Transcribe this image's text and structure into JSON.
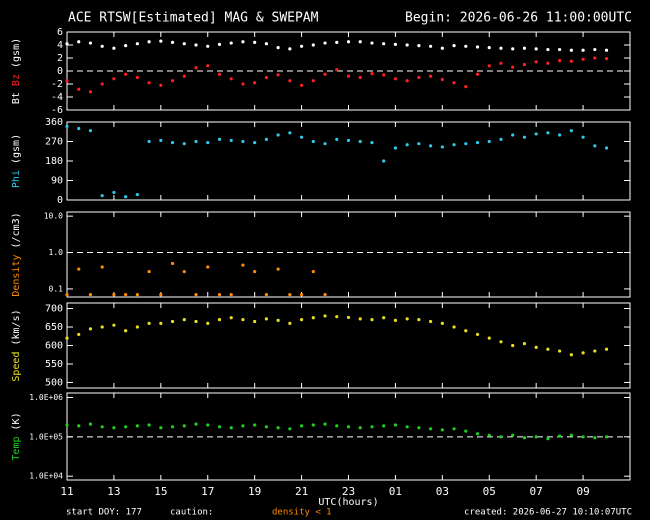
{
  "header": {
    "title": "ACE RTSW[Estimated] MAG & SWEPAM",
    "begin": "Begin: 2026-06-26 11:00:00UTC"
  },
  "chart_data": [
    {
      "type": "scatter",
      "ylabel": "(gsm)",
      "xlim": [
        0,
        24
      ],
      "ylim": [
        -6,
        6
      ],
      "yticks": [
        -6,
        -4,
        -2,
        0,
        2,
        4,
        6
      ],
      "log": false,
      "hline": 0,
      "x": [
        0,
        0.5,
        1,
        1.5,
        2,
        2.5,
        3,
        3.5,
        4,
        4.5,
        5,
        5.5,
        6,
        6.5,
        7,
        7.5,
        8,
        8.5,
        9,
        9.5,
        10,
        10.5,
        11,
        11.5,
        12,
        12.5,
        13,
        13.5,
        14,
        14.5,
        15,
        15.5,
        16,
        16.5,
        17,
        17.5,
        18,
        18.5,
        19,
        19.5,
        20,
        20.5,
        21,
        21.5,
        22,
        22.5,
        23
      ],
      "series": [
        {
          "name": "Bt",
          "color": "#ffffff",
          "values": [
            4.2,
            4.5,
            4.3,
            3.8,
            3.5,
            3.9,
            4.2,
            4.5,
            4.6,
            4.4,
            4.2,
            4.0,
            3.8,
            4.1,
            4.3,
            4.5,
            4.4,
            4.2,
            3.6,
            3.4,
            3.8,
            4.0,
            4.3,
            4.4,
            4.5,
            4.5,
            4.3,
            4.2,
            4.1,
            4.0,
            3.9,
            3.8,
            3.5,
            3.9,
            3.8,
            3.7,
            3.6,
            3.5,
            3.4,
            3.5,
            3.4,
            3.3,
            3.3,
            3.2,
            3.2,
            3.3,
            3.2
          ]
        },
        {
          "name": "Bz",
          "color": "#ff2020",
          "values": [
            -1.5,
            -2.8,
            -3.2,
            -2.0,
            -1.2,
            -0.5,
            -1.0,
            -1.8,
            -2.2,
            -1.5,
            -0.8,
            0.5,
            0.8,
            -0.5,
            -1.2,
            -2.0,
            -1.8,
            -1.0,
            -0.6,
            -1.5,
            -2.2,
            -1.5,
            -0.5,
            0.2,
            -0.8,
            -1.0,
            -0.4,
            -0.6,
            -1.2,
            -1.5,
            -1.0,
            -0.8,
            -1.3,
            -1.8,
            -2.4,
            -0.5,
            0.8,
            1.2,
            0.6,
            1.0,
            1.4,
            1.2,
            1.6,
            1.5,
            1.8,
            2.0,
            1.9
          ]
        }
      ]
    },
    {
      "type": "scatter",
      "ylabel": "(gsm)",
      "xlim": [
        0,
        24
      ],
      "ylim": [
        0,
        360
      ],
      "yticks": [
        0,
        90,
        180,
        270,
        360
      ],
      "log": false,
      "x": [
        0,
        0.5,
        1,
        1.5,
        2,
        2.5,
        3,
        3.5,
        4,
        4.5,
        5,
        5.5,
        6,
        6.5,
        7,
        7.5,
        8,
        8.5,
        9,
        9.5,
        10,
        10.5,
        11,
        11.5,
        12,
        12.5,
        13,
        13.5,
        14,
        14.5,
        15,
        15.5,
        16,
        16.5,
        17,
        17.5,
        18,
        18.5,
        19,
        19.5,
        20,
        20.5,
        21,
        21.5,
        22,
        22.5,
        23
      ],
      "series": [
        {
          "name": "Phi",
          "color": "#30c8e8",
          "values": [
            340,
            330,
            320,
            20,
            35,
            15,
            25,
            270,
            275,
            265,
            260,
            270,
            265,
            280,
            275,
            270,
            265,
            280,
            300,
            310,
            290,
            270,
            260,
            280,
            275,
            270,
            265,
            180,
            240,
            255,
            260,
            250,
            245,
            255,
            260,
            265,
            270,
            280,
            300,
            290,
            305,
            310,
            300,
            320,
            290,
            250,
            240
          ]
        }
      ]
    },
    {
      "type": "scatter",
      "ylabel": "(/cm3)",
      "xlim": [
        0,
        24
      ],
      "ylim": [
        0.06,
        13
      ],
      "yticks": [
        {
          "value": 0.1,
          "label": "0.1"
        },
        {
          "value": 1,
          "label": "1.0"
        },
        {
          "value": 10,
          "label": "10.0"
        }
      ],
      "log": true,
      "hline": 1,
      "x": [
        0,
        0.5,
        1,
        1.5,
        2,
        2.5,
        3,
        3.5,
        4,
        4.5,
        5,
        5.5,
        6,
        6.5,
        7,
        7.5,
        8,
        8.5,
        9,
        9.5,
        10,
        10.5,
        11,
        11.5,
        12,
        12.5,
        13,
        13.5,
        14,
        14.5,
        15,
        15.5,
        16,
        16.5,
        17,
        17.5,
        18,
        18.5,
        19,
        19.5,
        20,
        20.5,
        21,
        21.5,
        22,
        22.5,
        23
      ],
      "series": [
        {
          "name": "Density",
          "color": "#ff8c00",
          "values": [
            0.07,
            0.35,
            0.07,
            0.4,
            0.07,
            0.07,
            0.07,
            0.3,
            0.07,
            0.5,
            0.3,
            0.07,
            0.4,
            0.07,
            0.07,
            0.45,
            0.3,
            0.07,
            0.35,
            0.07,
            0.07,
            0.3,
            0.07,
            null,
            null,
            null,
            null,
            null,
            null,
            null,
            null,
            null,
            null,
            null,
            null,
            null,
            null,
            null,
            null,
            null,
            null,
            null,
            null,
            null,
            null,
            null,
            null
          ]
        }
      ]
    },
    {
      "type": "scatter",
      "ylabel": "(km/s)",
      "xlim": [
        0,
        24
      ],
      "ylim": [
        485,
        715
      ],
      "yticks": [
        500,
        550,
        600,
        650,
        700
      ],
      "log": false,
      "x": [
        0,
        0.5,
        1,
        1.5,
        2,
        2.5,
        3,
        3.5,
        4,
        4.5,
        5,
        5.5,
        6,
        6.5,
        7,
        7.5,
        8,
        8.5,
        9,
        9.5,
        10,
        10.5,
        11,
        11.5,
        12,
        12.5,
        13,
        13.5,
        14,
        14.5,
        15,
        15.5,
        16,
        16.5,
        17,
        17.5,
        18,
        18.5,
        19,
        19.5,
        20,
        20.5,
        21,
        21.5,
        22,
        22.5,
        23
      ],
      "series": [
        {
          "name": "Speed",
          "color": "#e8e020",
          "values": [
            620,
            630,
            645,
            650,
            655,
            640,
            650,
            660,
            660,
            665,
            670,
            665,
            660,
            670,
            675,
            670,
            665,
            672,
            668,
            660,
            670,
            675,
            680,
            678,
            676,
            672,
            670,
            675,
            668,
            672,
            670,
            665,
            660,
            650,
            640,
            630,
            620,
            610,
            600,
            605,
            595,
            590,
            585,
            575,
            580,
            585,
            590
          ]
        }
      ]
    },
    {
      "type": "scatter",
      "ylabel": "(K)",
      "xlim": [
        0,
        24
      ],
      "ylim": [
        8000,
        1300000
      ],
      "yticks": [
        {
          "value": 10000,
          "label": "1.0E+04"
        },
        {
          "value": 100000,
          "label": "1.0E+05"
        },
        {
          "value": 1000000,
          "label": "1.0E+06"
        }
      ],
      "log": true,
      "hline": 100000,
      "x": [
        0,
        0.5,
        1,
        1.5,
        2,
        2.5,
        3,
        3.5,
        4,
        4.5,
        5,
        5.5,
        6,
        6.5,
        7,
        7.5,
        8,
        8.5,
        9,
        9.5,
        10,
        10.5,
        11,
        11.5,
        12,
        12.5,
        13,
        13.5,
        14,
        14.5,
        15,
        15.5,
        16,
        16.5,
        17,
        17.5,
        18,
        18.5,
        19,
        19.5,
        20,
        20.5,
        21,
        21.5,
        22,
        22.5,
        23
      ],
      "series": [
        {
          "name": "Temp",
          "color": "#20d020",
          "values": [
            200000,
            190000,
            210000,
            180000,
            170000,
            180000,
            190000,
            200000,
            170000,
            180000,
            190000,
            210000,
            200000,
            180000,
            170000,
            190000,
            200000,
            180000,
            170000,
            160000,
            190000,
            200000,
            210000,
            190000,
            180000,
            170000,
            180000,
            190000,
            200000,
            180000,
            170000,
            160000,
            150000,
            160000,
            140000,
            120000,
            110000,
            100000,
            110000,
            95000,
            100000,
            90000,
            105000,
            110000,
            100000,
            95000,
            100000
          ]
        }
      ],
      "xlabel": "UTC(hours)",
      "xticks": [
        {
          "value": 0,
          "label": "11"
        },
        {
          "value": 2,
          "label": "13"
        },
        {
          "value": 4,
          "label": "15"
        },
        {
          "value": 6,
          "label": "17"
        },
        {
          "value": 8,
          "label": "19"
        },
        {
          "value": 10,
          "label": "21"
        },
        {
          "value": 12,
          "label": "23"
        },
        {
          "value": 14,
          "label": "01"
        },
        {
          "value": 16,
          "label": "03"
        },
        {
          "value": 18,
          "label": "05"
        },
        {
          "value": 20,
          "label": "07"
        },
        {
          "value": 22,
          "label": "09"
        }
      ]
    }
  ],
  "footer": {
    "start": "start DOY: 177",
    "caution": "caution:",
    "density_note": "density < 1",
    "created": "created: 2026-06-27 10:10:07UTC"
  }
}
